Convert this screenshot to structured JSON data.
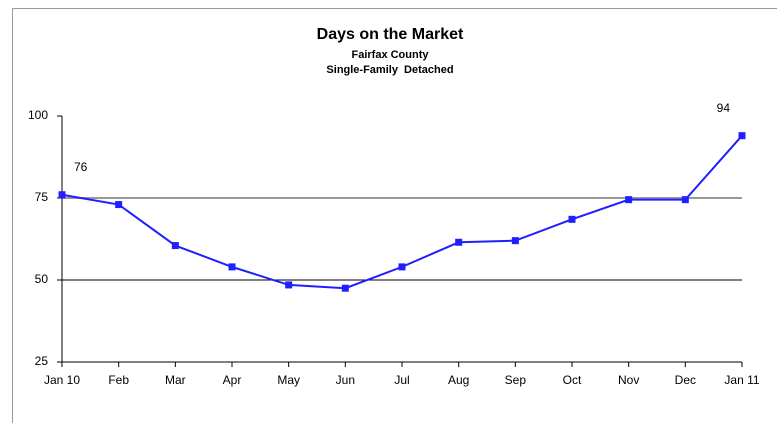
{
  "chart_data": {
    "type": "line",
    "title": "Days on the Market",
    "subtitle": [
      "Fairfax County",
      "Single-Family  Detached"
    ],
    "categories": [
      "Jan 10",
      "Feb",
      "Mar",
      "Apr",
      "May",
      "Jun",
      "Jul",
      "Aug",
      "Sep",
      "Oct",
      "Nov",
      "Dec",
      "Jan 11"
    ],
    "series": [
      {
        "color": "#1f1fff",
        "values": [
          76,
          73,
          60.5,
          54,
          48.5,
          47.5,
          54,
          61.5,
          62,
          68.5,
          74.5,
          74.5,
          94
        ]
      }
    ],
    "data_labels": "ends",
    "ylim": [
      25,
      100
    ],
    "yticks": [
      25,
      50,
      75,
      100
    ],
    "grid": true
  }
}
